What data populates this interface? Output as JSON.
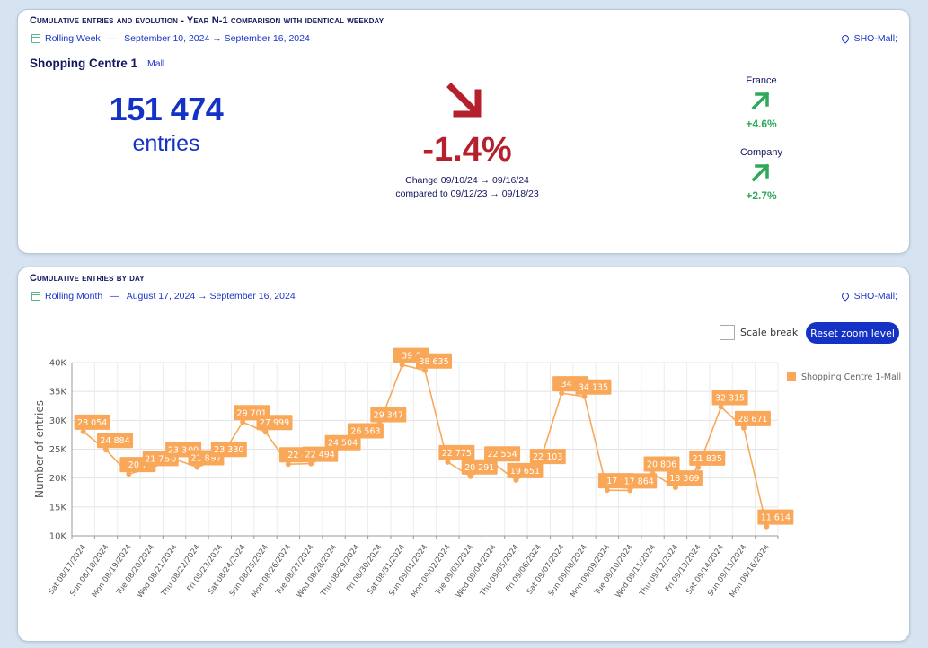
{
  "card1": {
    "title": "Cumulative entries and evolution - Year N-1 comparison with identical weekday",
    "period_type": "Rolling Week",
    "period_dates": "September 10, 2024 → September 16, 2024",
    "location": "SHO-Mall;",
    "centre_name": "Shopping Centre 1",
    "centre_tag": "Mall",
    "entries_value": "151 474",
    "entries_unit": "entries",
    "change_value": "-1.4%",
    "change_line1": "Change 09/10/24 → 09/16/24",
    "change_line2": "compared to 09/12/23 → 09/18/23",
    "comparisons": [
      {
        "label": "France",
        "value": "+4.6%"
      },
      {
        "label": "Company",
        "value": "+2.7%"
      }
    ],
    "colors": {
      "negative": "#b5202c",
      "positive": "#2fa85a",
      "accent": "#1432c6"
    },
    "icons": {
      "calendar": "calendar-icon",
      "location": "map-pin-icon",
      "down": "arrow-down-right-icon",
      "up": "arrow-up-right-icon"
    }
  },
  "card2": {
    "title": "Cumulative entries by day",
    "period_type": "Rolling Month",
    "period_dates": "August 17, 2024 → September 16, 2024",
    "location": "SHO-Mall;",
    "scale_break_label": "Scale break",
    "reset_zoom_label": "Reset zoom level"
  },
  "chart_data": {
    "type": "line",
    "title": "",
    "xlabel": "",
    "ylabel": "Number of entries",
    "ylim": [
      10000,
      40000
    ],
    "yticks": [
      "10K",
      "15K",
      "20K",
      "25K",
      "30K",
      "35K",
      "40K"
    ],
    "grid": true,
    "legend_position": "right",
    "series_color": "#f9a85a",
    "categories": [
      "Sat 08/17/2024",
      "Sun 08/18/2024",
      "Mon 08/19/2024",
      "Tue 08/20/2024",
      "Wed 08/21/2024",
      "Thu 08/22/2024",
      "Fri 08/23/2024",
      "Sat 08/24/2024",
      "Sun 08/25/2024",
      "Mon 08/26/2024",
      "Tue 08/27/2024",
      "Wed 08/28/2024",
      "Thu 08/29/2024",
      "Fri 08/30/2024",
      "Sat 08/31/2024",
      "Sun 09/01/2024",
      "Mon 09/02/2024",
      "Tue 09/03/2024",
      "Wed 09/04/2024",
      "Thu 09/05/2024",
      "Fri 09/06/2024",
      "Sat 09/07/2024",
      "Sun 09/08/2024",
      "Mon 09/09/2024",
      "Tue 09/10/2024",
      "Wed 09/11/2024",
      "Thu 09/12/2024",
      "Fri 09/13/2024",
      "Sat 09/14/2024",
      "Sun 09/15/2024",
      "Mon 09/16/2024"
    ],
    "series": [
      {
        "name": "Shopping Centre 1-Mall",
        "values": [
          28054,
          24884,
          20700,
          21750,
          23300,
          21897,
          23330,
          29701,
          27999,
          22400,
          22494,
          24504,
          26563,
          29347,
          39600,
          38635,
          22775,
          20291,
          22554,
          19651,
          22103,
          34700,
          34135,
          17900,
          17864,
          20806,
          18369,
          21835,
          32315,
          28671,
          11614
        ],
        "labels": [
          "28 054",
          "24 884",
          "20 7",
          "21 7 5 0",
          "23 3 00",
          "21 8 97",
          "23 330",
          "29 701",
          "27 999",
          "22 4",
          "22 494",
          "24 504",
          "26 563",
          "29 347",
          "39 6",
          "38 635",
          "22 775",
          "20 291",
          "22 554",
          "19 651",
          "22 103",
          "34 7",
          "34 135",
          "17 9",
          "17 864",
          "20 806",
          "18 369",
          "21 835",
          "32 315",
          "28 671",
          "11 614"
        ]
      }
    ]
  }
}
